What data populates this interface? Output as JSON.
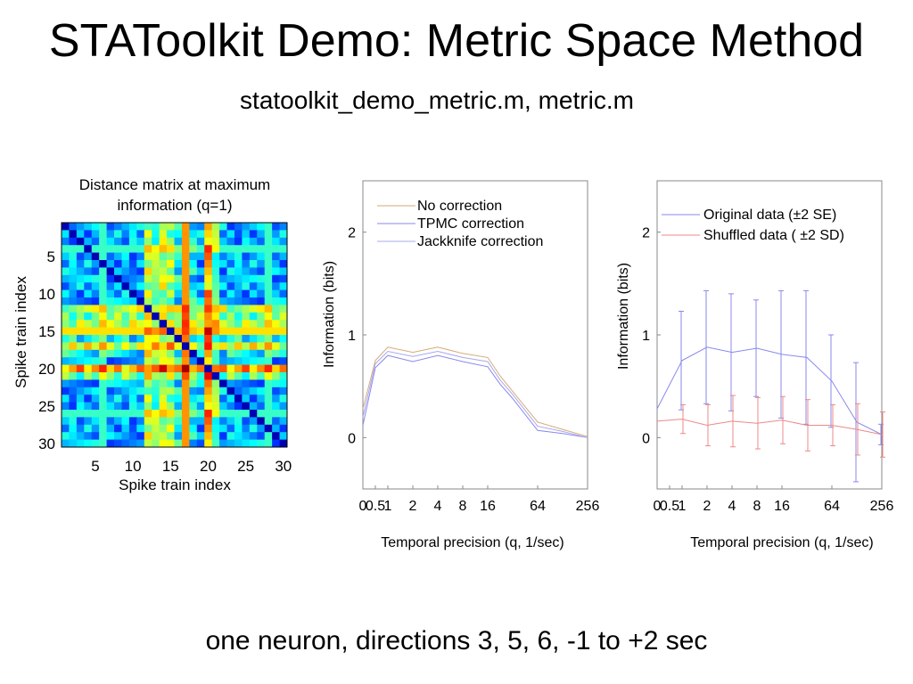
{
  "slide": {
    "title": "STAToolkit Demo: Metric Space Method",
    "subtitle": "statoolkit_demo_metric.m, metric.m",
    "footer": "one neuron, directions 3, 5, 6, -1 to +2 sec"
  },
  "chart_data": [
    {
      "type": "heatmap",
      "title": "Distance matrix at maximum information (q=1)",
      "title_lines": [
        "Distance matrix at maximum",
        "information (q=1)"
      ],
      "xlabel": "Spike train index",
      "ylabel": "Spike train index",
      "size": 30,
      "xticks": [
        5,
        10,
        15,
        20,
        25,
        30
      ],
      "yticks": [
        5,
        10,
        15,
        20,
        25,
        30
      ],
      "colormap": "jet",
      "row_scores": [
        0.3,
        0.3,
        0.3,
        0.3,
        0.3,
        0.3,
        0.3,
        0.3,
        0.3,
        0.3,
        0.3,
        0.65,
        0.55,
        0.65,
        0.6,
        0.4,
        0.7,
        0.4,
        0.3,
        0.85,
        0.55,
        0.3,
        0.3,
        0.3,
        0.3,
        0.3,
        0.3,
        0.3,
        0.3,
        0.3
      ]
    },
    {
      "type": "line",
      "xlabel": "Temporal precision (q, 1/sec)",
      "ylabel": "Information (bits)",
      "x_tick_labels": [
        "0",
        "0.5",
        "1",
        "2",
        "4",
        "8",
        "16",
        "64",
        "256"
      ],
      "x_tick_positions": [
        0,
        0.5,
        1,
        2,
        3,
        4,
        5,
        7,
        9
      ],
      "yticks": [
        0,
        1,
        2
      ],
      "ylim": [
        -0.5,
        2.5
      ],
      "xlim": [
        0,
        9
      ],
      "legend": "top-right",
      "series": [
        {
          "name": "No correction",
          "color": "#d6aa77",
          "x": [
            0,
            0.5,
            1,
            2,
            3,
            4,
            5,
            5.5,
            6,
            7,
            8,
            9
          ],
          "values": [
            0.28,
            0.75,
            0.88,
            0.83,
            0.88,
            0.82,
            0.78,
            0.6,
            0.45,
            0.15,
            0.08,
            0.01
          ]
        },
        {
          "name": "TPMC correction",
          "color": "#8888ee",
          "x": [
            0,
            0.5,
            1,
            2,
            3,
            4,
            5,
            5.5,
            6,
            7,
            8,
            9
          ],
          "values": [
            0.12,
            0.68,
            0.8,
            0.74,
            0.8,
            0.74,
            0.69,
            0.52,
            0.38,
            0.07,
            0.04,
            0.0
          ]
        },
        {
          "name": "Jackknife correction",
          "color": "#a8a8f0",
          "x": [
            0,
            0.5,
            1,
            2,
            3,
            4,
            5,
            5.5,
            6,
            7,
            8,
            9
          ],
          "values": [
            0.2,
            0.72,
            0.84,
            0.79,
            0.84,
            0.78,
            0.74,
            0.56,
            0.42,
            0.11,
            0.06,
            0.0
          ]
        }
      ]
    },
    {
      "type": "line",
      "xlabel": "Temporal precision (q, 1/sec)",
      "ylabel": "Information  (bits)",
      "x_tick_labels": [
        "0",
        "0.5",
        "1",
        "2",
        "4",
        "8",
        "16",
        "64",
        "256"
      ],
      "x_tick_positions": [
        0,
        0.5,
        1,
        2,
        3,
        4,
        5,
        7,
        9
      ],
      "yticks": [
        0,
        1,
        2
      ],
      "ylim": [
        -0.5,
        2.5
      ],
      "xlim": [
        0,
        9
      ],
      "legend": "top-right",
      "series": [
        {
          "name": "Original data (±2 SE)",
          "color": "#8888ee",
          "x": [
            0,
            1,
            2,
            3,
            4,
            5,
            6,
            7,
            8,
            9
          ],
          "values": [
            0.28,
            0.75,
            0.88,
            0.83,
            0.87,
            0.81,
            0.78,
            0.55,
            0.15,
            0.03
          ],
          "err": [
            0.0,
            0.48,
            0.55,
            0.57,
            0.47,
            0.62,
            0.65,
            0.45,
            0.58,
            0.1
          ]
        },
        {
          "name": "Shuffled data ( ±2 SD)",
          "color": "#ee8888",
          "x": [
            0,
            1,
            2,
            3,
            4,
            5,
            6,
            7,
            8,
            9
          ],
          "values": [
            0.16,
            0.18,
            0.12,
            0.16,
            0.14,
            0.17,
            0.12,
            0.12,
            0.08,
            0.03
          ],
          "err": [
            0.0,
            0.14,
            0.2,
            0.25,
            0.25,
            0.23,
            0.25,
            0.2,
            0.25,
            0.22
          ]
        }
      ]
    }
  ]
}
